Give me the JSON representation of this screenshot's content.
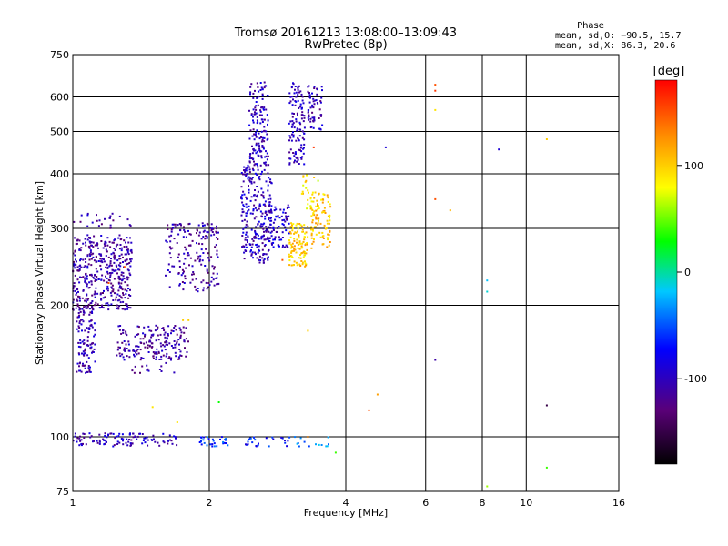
{
  "chart_data": {
    "type": "scatter",
    "title": "Tromsø 20161213 13:08:00–13:09:43",
    "subtitle": "RwPretec (8p)",
    "xlabel": "Frequency [MHz]",
    "ylabel": "Stationary phase Virtual Height [km]",
    "xscale": "log",
    "yscale": "log",
    "xlim": [
      1,
      16
    ],
    "ylim": [
      75,
      750
    ],
    "x_ticks": [
      1,
      2,
      4,
      6,
      8,
      10,
      16
    ],
    "y_ticks": [
      75,
      100,
      200,
      300,
      400,
      500,
      600,
      750
    ],
    "grid": true,
    "legend": "right",
    "stats": {
      "heading": "Phase",
      "o_line": "mean, sd,O: −90.5, 15.7",
      "x_line": "mean, sd,X:  86.3, 20.6"
    },
    "colorbar": {
      "title": "[deg]",
      "range": [
        -180,
        180
      ],
      "ticks": [
        -100,
        0,
        100
      ],
      "colors": [
        "#000000",
        "#5a0078",
        "#0000ff",
        "#00c8ff",
        "#00ff00",
        "#ffff00",
        "#ff8800",
        "#ff0000"
      ]
    },
    "clusters": [
      {
        "f": [
          1.0,
          1.35
        ],
        "h": [
          195,
          290
        ],
        "phase": -110,
        "n": 420
      },
      {
        "f": [
          1.02,
          1.12
        ],
        "h": [
          140,
          200
        ],
        "phase": -105,
        "n": 120
      },
      {
        "f": [
          1.25,
          1.8
        ],
        "h": [
          150,
          180
        ],
        "phase": -110,
        "n": 160
      },
      {
        "f": [
          1.35,
          1.7
        ],
        "h": [
          140,
          165
        ],
        "phase": -115,
        "n": 40
      },
      {
        "f": [
          1.6,
          2.1
        ],
        "h": [
          215,
          310
        ],
        "phase": -110,
        "n": 180
      },
      {
        "f": [
          1.0,
          1.35
        ],
        "h": [
          300,
          325
        ],
        "phase": -110,
        "n": 25
      },
      {
        "f": [
          2.35,
          2.75
        ],
        "h": [
          250,
          420
        ],
        "phase": -100,
        "n": 260
      },
      {
        "f": [
          2.45,
          2.7
        ],
        "h": [
          420,
          650
        ],
        "phase": -100,
        "n": 140
      },
      {
        "f": [
          2.7,
          3.0
        ],
        "h": [
          270,
          340
        ],
        "phase": -95,
        "n": 80
      },
      {
        "f": [
          3.0,
          3.25
        ],
        "h": [
          420,
          650
        ],
        "phase": -100,
        "n": 120
      },
      {
        "f": [
          3.3,
          3.55
        ],
        "h": [
          500,
          640
        ],
        "phase": -105,
        "n": 60
      },
      {
        "f": [
          3.0,
          3.3
        ],
        "h": [
          245,
          310
        ],
        "phase": 100,
        "n": 110
      },
      {
        "f": [
          3.35,
          3.7
        ],
        "h": [
          270,
          360
        ],
        "phase": 105,
        "n": 90
      },
      {
        "f": [
          3.2,
          3.5
        ],
        "h": [
          330,
          400
        ],
        "phase": 90,
        "n": 30
      },
      {
        "f": [
          1.0,
          1.7
        ],
        "h": [
          95,
          102
        ],
        "phase": -100,
        "n": 110
      },
      {
        "f": [
          1.9,
          2.2
        ],
        "h": [
          95,
          100
        ],
        "phase": -60,
        "n": 30
      },
      {
        "f": [
          2.4,
          3.0
        ],
        "h": [
          95,
          100
        ],
        "phase": -70,
        "n": 25
      },
      {
        "f": [
          3.0,
          3.7
        ],
        "h": [
          95,
          100
        ],
        "phase": -40,
        "n": 15
      }
    ],
    "isolated_points": [
      {
        "f": 6.3,
        "h": 640,
        "phase": 150
      },
      {
        "f": 6.3,
        "h": 620,
        "phase": 160
      },
      {
        "f": 6.3,
        "h": 560,
        "phase": 90
      },
      {
        "f": 4.9,
        "h": 460,
        "phase": -90
      },
      {
        "f": 8.7,
        "h": 455,
        "phase": -90
      },
      {
        "f": 11.1,
        "h": 480,
        "phase": 100
      },
      {
        "f": 6.3,
        "h": 350,
        "phase": 150
      },
      {
        "f": 6.8,
        "h": 330,
        "phase": 110
      },
      {
        "f": 8.2,
        "h": 228,
        "phase": -20
      },
      {
        "f": 8.2,
        "h": 215,
        "phase": -10
      },
      {
        "f": 6.3,
        "h": 150,
        "phase": -110
      },
      {
        "f": 3.3,
        "h": 175,
        "phase": 100
      },
      {
        "f": 4.5,
        "h": 115,
        "phase": 150
      },
      {
        "f": 4.7,
        "h": 125,
        "phase": 120
      },
      {
        "f": 11.1,
        "h": 118,
        "phase": -150
      },
      {
        "f": 2.1,
        "h": 120,
        "phase": 30
      },
      {
        "f": 1.5,
        "h": 117,
        "phase": 90
      },
      {
        "f": 1.7,
        "h": 108,
        "phase": 90
      },
      {
        "f": 3.8,
        "h": 92,
        "phase": 40
      },
      {
        "f": 11.1,
        "h": 85,
        "phase": 40
      },
      {
        "f": 8.2,
        "h": 77,
        "phase": 60
      },
      {
        "f": 3.3,
        "h": 100,
        "phase": 130
      },
      {
        "f": 2.9,
        "h": 254,
        "phase": 150
      },
      {
        "f": 3.4,
        "h": 460,
        "phase": 160
      },
      {
        "f": 1.2,
        "h": 225,
        "phase": 150
      },
      {
        "f": 1.3,
        "h": 245,
        "phase": 150
      },
      {
        "f": 1.8,
        "h": 185,
        "phase": 100
      },
      {
        "f": 1.75,
        "h": 185,
        "phase": 100
      }
    ]
  }
}
